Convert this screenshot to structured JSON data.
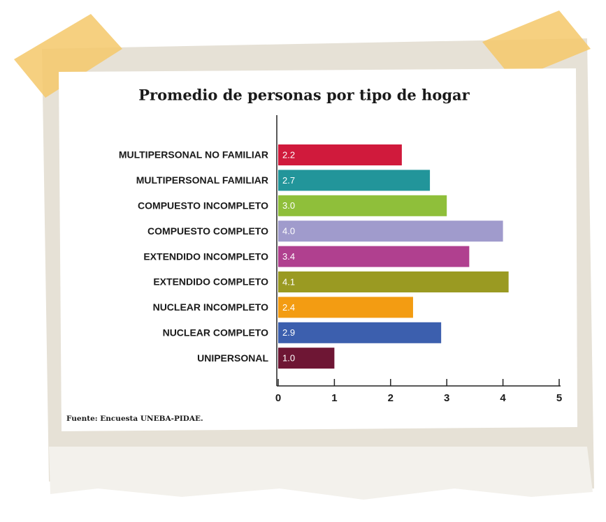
{
  "chart_data": {
    "type": "bar",
    "orientation": "horizontal",
    "title": "Promedio de personas por tipo de hogar",
    "source": "Fuente: Encuesta UNEBA-PIDAE.",
    "categories": [
      "MULTIPERSONAL NO FAMILIAR",
      "MULTIPERSONAL FAMILIAR",
      "COMPUESTO INCOMPLETO",
      "COMPUESTO COMPLETO",
      "EXTENDIDO INCOMPLETO",
      "EXTENDIDO COMPLETO",
      "NUCLEAR INCOMPLETO",
      "NUCLEAR COMPLETO",
      "UNIPERSONAL"
    ],
    "values": [
      2.2,
      2.7,
      3.0,
      4.0,
      3.4,
      4.1,
      2.4,
      2.9,
      1.0
    ],
    "value_labels": [
      "2.2",
      "2.7",
      "3.0",
      "4.0",
      "3.4",
      "4.1",
      "2.4",
      "2.9",
      "1.0"
    ],
    "colors": [
      "#d01a3c",
      "#22959a",
      "#8fbf3a",
      "#a09bcc",
      "#b0408f",
      "#9a9a22",
      "#f39c12",
      "#3c5fae",
      "#6e1634"
    ],
    "xlim": [
      0,
      5
    ],
    "xticks": [
      0,
      1,
      2,
      3,
      4,
      5
    ],
    "grid": false
  }
}
